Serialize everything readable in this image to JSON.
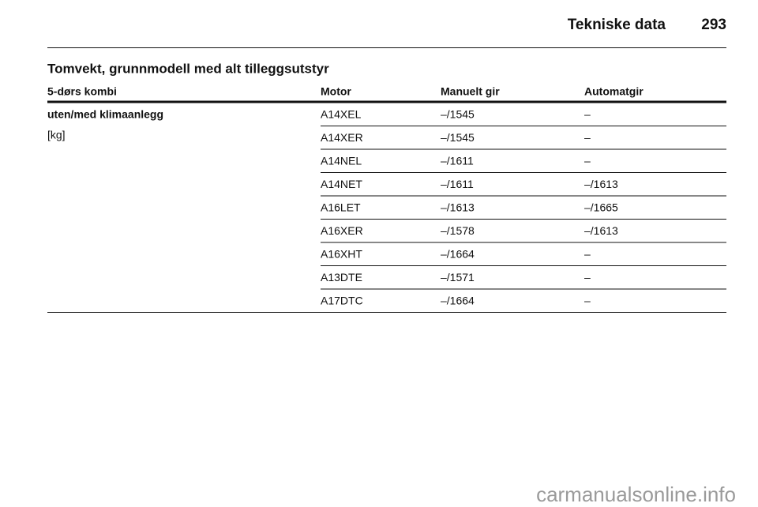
{
  "header": {
    "section_title": "Tekniske data",
    "page_number": "293"
  },
  "table": {
    "title": "Tomvekt, grunnmodell med alt tilleggsutstyr",
    "columns": [
      "5-dørs kombi",
      "Motor",
      "Manuelt gir",
      "Automatgir"
    ],
    "row_label": [
      "uten/med klimaanlegg",
      "[kg]"
    ],
    "rows": [
      [
        "A14XEL",
        "–/1545",
        "–"
      ],
      [
        "A14XER",
        "–/1545",
        "–"
      ],
      [
        "A14NEL",
        "–/1611",
        "–"
      ],
      [
        "A14NET",
        "–/1611",
        "–/1613"
      ],
      [
        "A16LET",
        "–/1613",
        "–/1665"
      ],
      [
        "A16XER",
        "–/1578",
        "–/1613"
      ],
      [
        "A16XHT",
        "–/1664",
        "–"
      ],
      [
        "A13DTE",
        "–/1571",
        "–"
      ],
      [
        "A17DTC",
        "–/1664",
        "–"
      ]
    ]
  },
  "watermark": "carmanualsonline.info"
}
